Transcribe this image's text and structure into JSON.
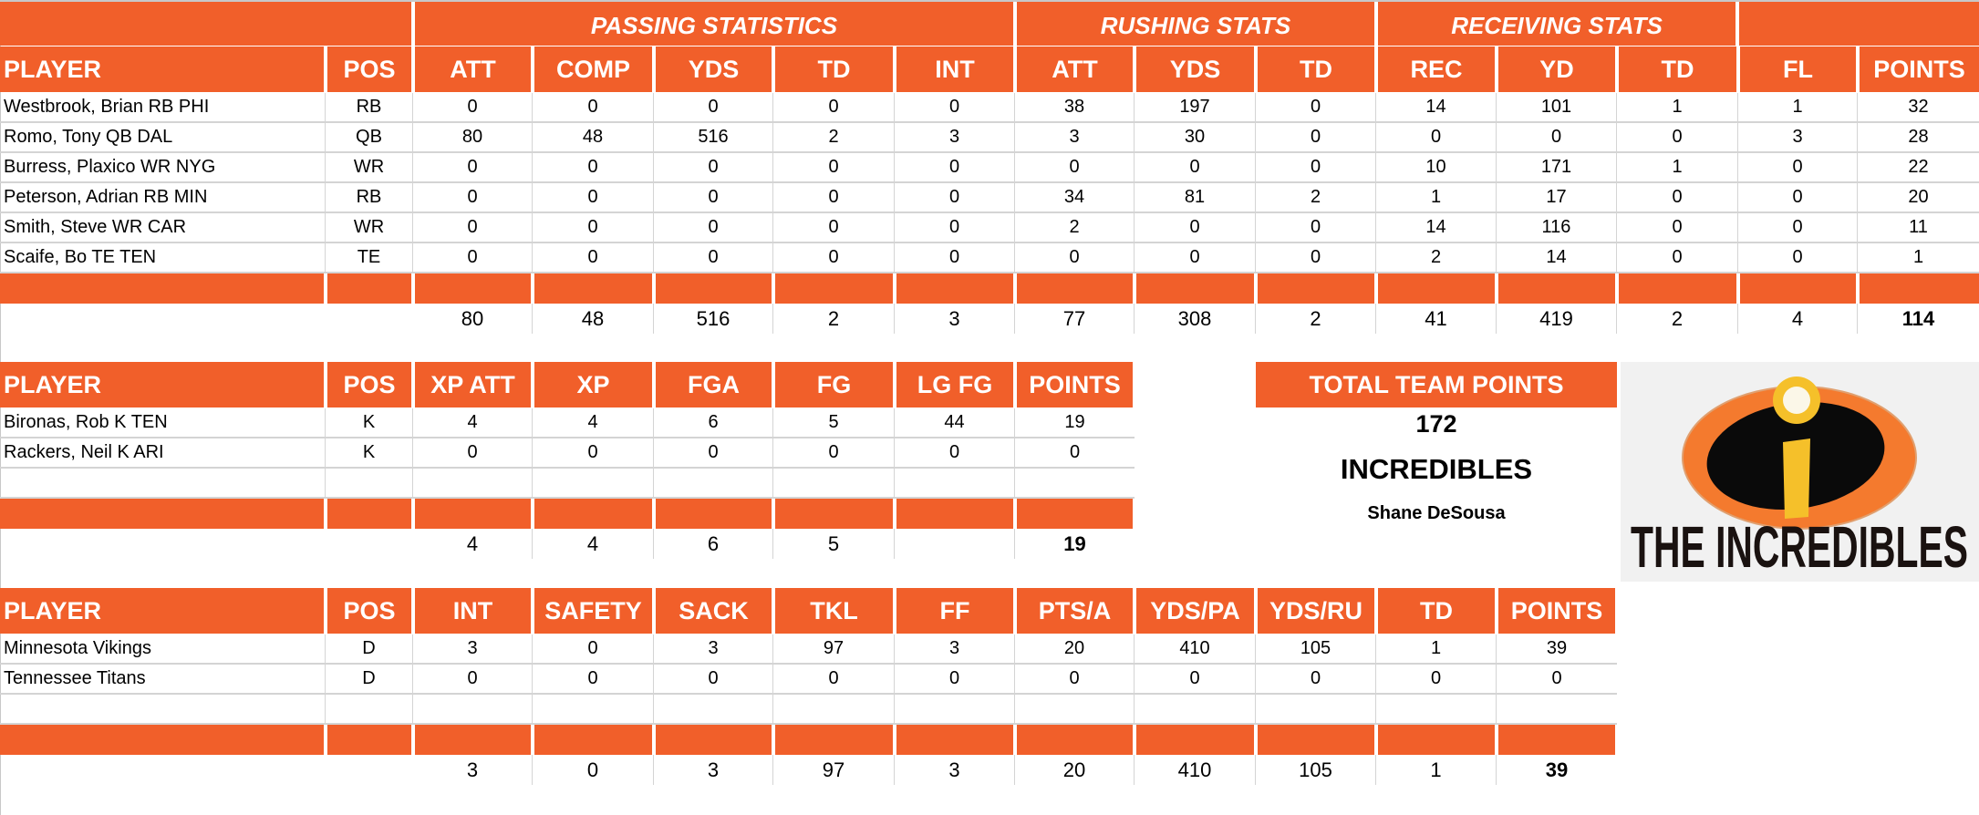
{
  "offense": {
    "group_headers": {
      "passing": "PASSING STATISTICS",
      "rushing": "RUSHING STATS",
      "receiving": "RECEIVING STATS"
    },
    "columns": [
      "PLAYER",
      "POS",
      "ATT",
      "COMP",
      "YDS",
      "TD",
      "INT",
      "ATT",
      "YDS",
      "TD",
      "REC",
      "YD",
      "TD",
      "FL",
      "POINTS"
    ],
    "rows": [
      [
        "Westbrook, Brian RB PHI",
        "RB",
        "0",
        "0",
        "0",
        "0",
        "0",
        "38",
        "197",
        "0",
        "14",
        "101",
        "1",
        "1",
        "32"
      ],
      [
        "Romo, Tony QB DAL",
        "QB",
        "80",
        "48",
        "516",
        "2",
        "3",
        "3",
        "30",
        "0",
        "0",
        "0",
        "0",
        "3",
        "28"
      ],
      [
        "Burress, Plaxico WR NYG",
        "WR",
        "0",
        "0",
        "0",
        "0",
        "0",
        "0",
        "0",
        "0",
        "10",
        "171",
        "1",
        "0",
        "22"
      ],
      [
        "Peterson, Adrian RB MIN",
        "RB",
        "0",
        "0",
        "0",
        "0",
        "0",
        "34",
        "81",
        "2",
        "1",
        "17",
        "0",
        "0",
        "20"
      ],
      [
        "Smith, Steve WR CAR",
        "WR",
        "0",
        "0",
        "0",
        "0",
        "0",
        "2",
        "0",
        "0",
        "14",
        "116",
        "0",
        "0",
        "11"
      ],
      [
        "Scaife, Bo TE TEN",
        "TE",
        "0",
        "0",
        "0",
        "0",
        "0",
        "0",
        "0",
        "0",
        "2",
        "14",
        "0",
        "0",
        "1"
      ]
    ],
    "totals": [
      "",
      "",
      "80",
      "48",
      "516",
      "2",
      "3",
      "77",
      "308",
      "2",
      "41",
      "419",
      "2",
      "4",
      "114"
    ]
  },
  "kicker": {
    "columns": [
      "PLAYER",
      "POS",
      "XP ATT",
      "XP",
      "FGA",
      "FG",
      "LG FG",
      "POINTS"
    ],
    "rows": [
      [
        "Bironas, Rob K TEN",
        "K",
        "4",
        "4",
        "6",
        "5",
        "44",
        "19"
      ],
      [
        "Rackers, Neil K ARI",
        "K",
        "0",
        "0",
        "0",
        "0",
        "0",
        "0"
      ]
    ],
    "totals": [
      "",
      "",
      "4",
      "4",
      "6",
      "5",
      "",
      "19"
    ]
  },
  "defense": {
    "columns": [
      "PLAYER",
      "POS",
      "INT",
      "SAFETY",
      "SACK",
      "TKL",
      "FF",
      "PTS/A",
      "YDS/PA",
      "YDS/RU",
      "TD",
      "POINTS"
    ],
    "rows": [
      [
        "Minnesota Vikings",
        "D",
        "3",
        "0",
        "3",
        "97",
        "3",
        "20",
        "410",
        "105",
        "1",
        "39"
      ],
      [
        "Tennessee Titans",
        "D",
        "0",
        "0",
        "0",
        "0",
        "0",
        "0",
        "0",
        "0",
        "0",
        "0"
      ]
    ],
    "totals": [
      "",
      "",
      "3",
      "0",
      "3",
      "97",
      "3",
      "20",
      "410",
      "105",
      "1",
      "39"
    ]
  },
  "team_summary": {
    "header": "TOTAL TEAM POINTS",
    "total_points": "172",
    "team_name": "INCREDIBLES",
    "owner": "Shane DeSousa"
  },
  "logo": {
    "text": "THE INCREDIBLES",
    "icon": "incredibles-logo-icon"
  },
  "colors": {
    "header_orange": "#F15F2A",
    "header_text": "#FFFFFF",
    "grid_line": "#D4D4D4"
  }
}
